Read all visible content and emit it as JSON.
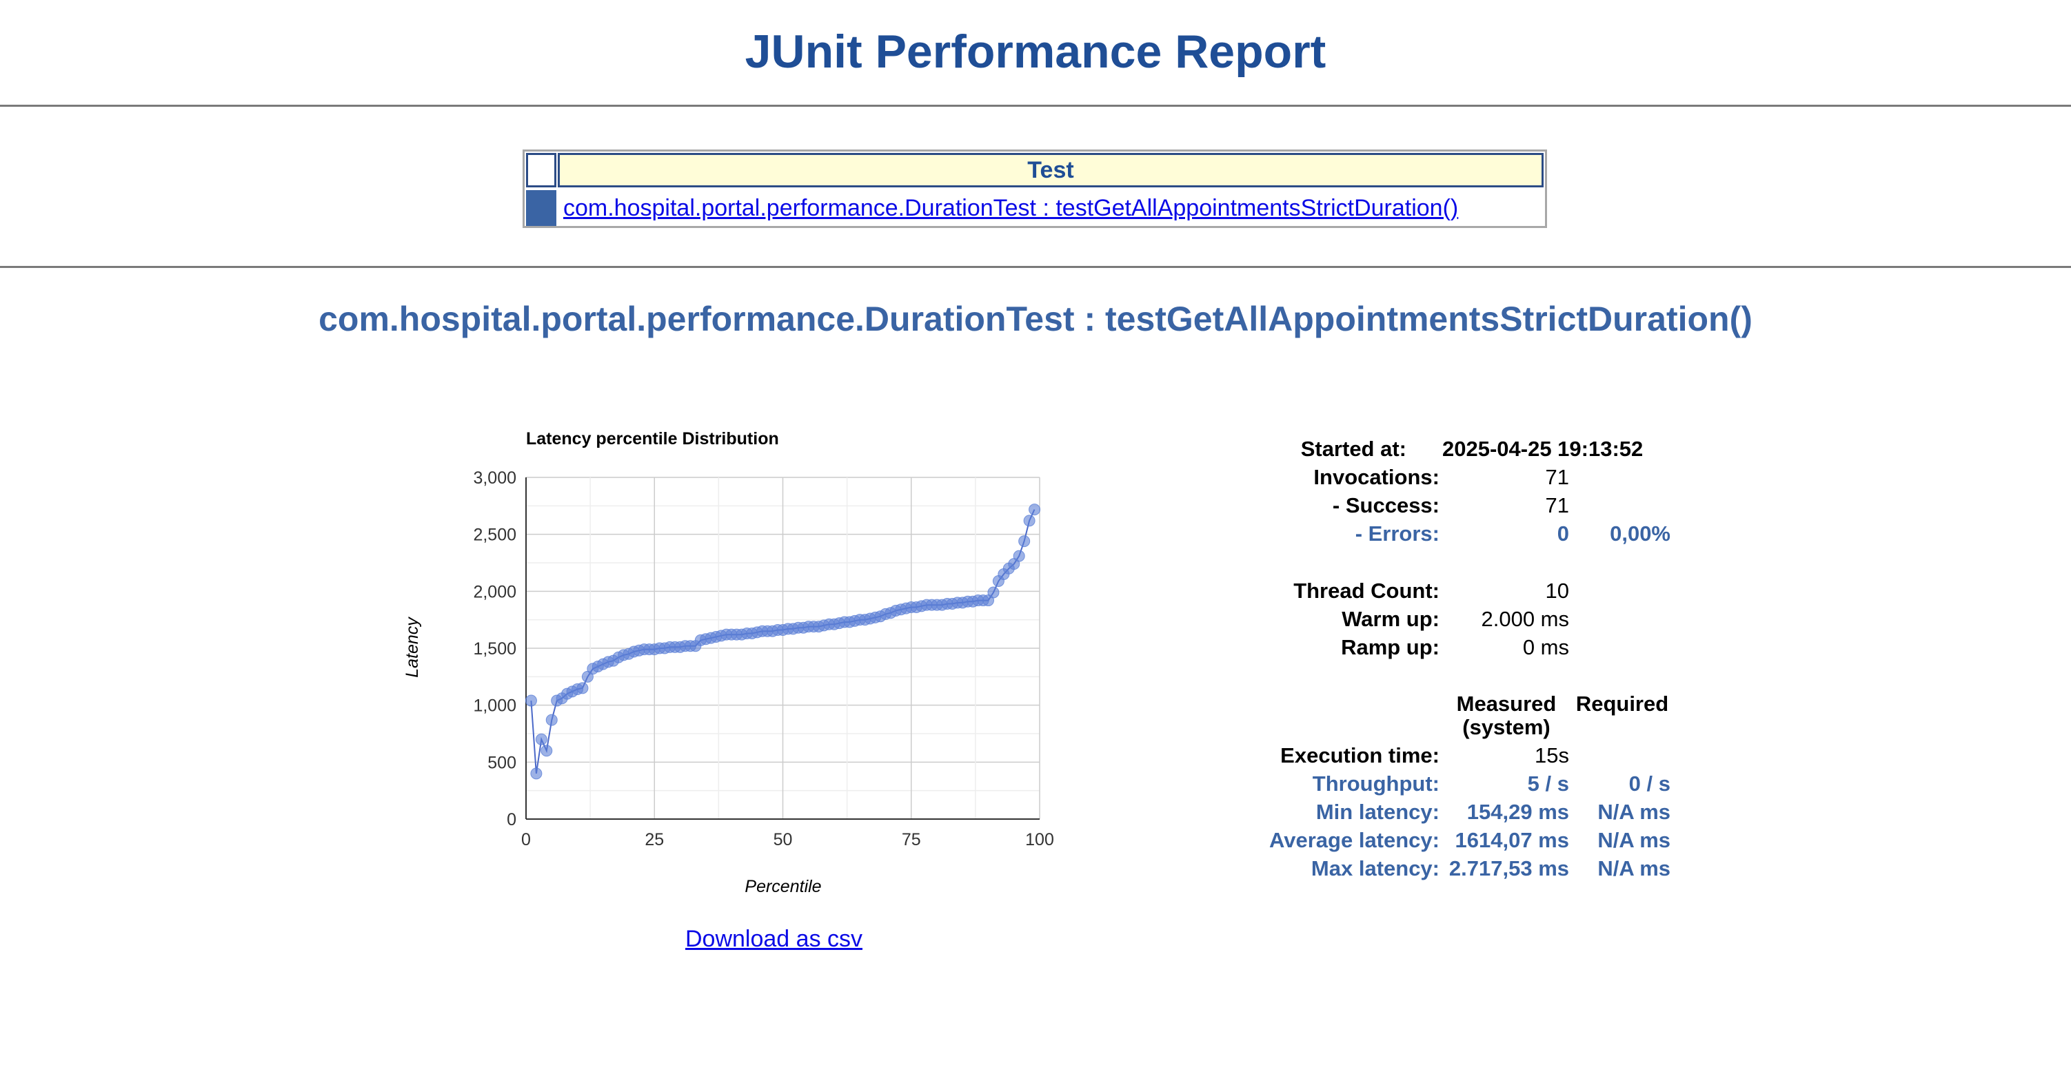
{
  "page": {
    "title": "JUnit Performance Report"
  },
  "summary_table": {
    "header": "Test",
    "rows": [
      {
        "link": "com.hospital.portal.performance.DurationTest : testGetAllAppointmentsStrictDuration()"
      }
    ]
  },
  "section": {
    "title": "com.hospital.portal.performance.DurationTest : testGetAllAppointmentsStrictDuration()",
    "download_label": "Download as csv"
  },
  "stats": {
    "started_at": {
      "label": "Started at:",
      "value": "2025-04-25 19:13:52"
    },
    "invocations": {
      "label": "Invocations:",
      "value": "71"
    },
    "success": {
      "label": "- Success:",
      "value": "71"
    },
    "errors": {
      "label": "- Errors:",
      "value": "0",
      "percent": "0,00%"
    },
    "thread_count": {
      "label": "Thread Count:",
      "value": "10"
    },
    "warm_up": {
      "label": "Warm up:",
      "value": "2.000 ms"
    },
    "ramp_up": {
      "label": "Ramp up:",
      "value": "0 ms"
    },
    "columns": {
      "measured": "Measured",
      "measured_sub": "(system)",
      "required": "Required"
    },
    "execution_time": {
      "label": "Execution time:",
      "measured": "15s"
    },
    "throughput": {
      "label": "Throughput:",
      "measured": "5 / s",
      "required": "0 / s"
    },
    "min_latency": {
      "label": "Min latency:",
      "measured": "154,29 ms",
      "required": "N/A ms"
    },
    "average_latency": {
      "label": "Average latency:",
      "measured": "1614,07 ms",
      "required": "N/A ms"
    },
    "max_latency": {
      "label": "Max latency:",
      "measured": "2.717,53 ms",
      "required": "N/A ms"
    }
  },
  "colors": {
    "title": "#1f4e96",
    "accent": "#3a64a4",
    "link": "#0a0ae6",
    "header_bg": "#fffdd8",
    "series": "#5b7fd6"
  },
  "chart_data": {
    "type": "line",
    "title": "Latency percentile Distribution",
    "xlabel": "Percentile",
    "ylabel": "Latency",
    "xlim": [
      0,
      100
    ],
    "ylim": [
      0,
      3000
    ],
    "xticks": [
      "0",
      "25",
      "50",
      "75",
      "100"
    ],
    "yticks": [
      "0",
      "500",
      "1,000",
      "1,500",
      "2,000",
      "2,500",
      "3,000"
    ],
    "grid": true,
    "series": [
      {
        "x": [
          1,
          2,
          3,
          4,
          5,
          6,
          7,
          8,
          9,
          10,
          11,
          12,
          13,
          14,
          15,
          16,
          17,
          18,
          19,
          20,
          21,
          22,
          23,
          24,
          25,
          26,
          27,
          28,
          29,
          30,
          31,
          32,
          33,
          34,
          35,
          36,
          37,
          38,
          39,
          40,
          41,
          42,
          43,
          44,
          45,
          46,
          47,
          48,
          49,
          50,
          51,
          52,
          53,
          54,
          55,
          56,
          57,
          58,
          59,
          60,
          61,
          62,
          63,
          64,
          65,
          66,
          67,
          68,
          69,
          70,
          71,
          72,
          73,
          74,
          75,
          76,
          77,
          78,
          79,
          80,
          81,
          82,
          83,
          84,
          85,
          86,
          87,
          88,
          89,
          90,
          91,
          92,
          93,
          94,
          95,
          96,
          97,
          98,
          99
        ],
        "values": [
          1040,
          400,
          700,
          600,
          870,
          1040,
          1060,
          1100,
          1120,
          1140,
          1150,
          1250,
          1320,
          1340,
          1360,
          1380,
          1390,
          1420,
          1440,
          1450,
          1470,
          1480,
          1490,
          1490,
          1490,
          1500,
          1500,
          1510,
          1510,
          1510,
          1520,
          1520,
          1520,
          1570,
          1580,
          1590,
          1600,
          1610,
          1620,
          1620,
          1620,
          1620,
          1630,
          1630,
          1640,
          1650,
          1650,
          1650,
          1660,
          1660,
          1670,
          1670,
          1680,
          1680,
          1690,
          1690,
          1690,
          1700,
          1710,
          1710,
          1720,
          1730,
          1730,
          1740,
          1750,
          1750,
          1760,
          1770,
          1780,
          1800,
          1810,
          1830,
          1840,
          1850,
          1860,
          1860,
          1870,
          1880,
          1880,
          1880,
          1880,
          1890,
          1890,
          1900,
          1900,
          1910,
          1910,
          1920,
          1920,
          1920,
          1990,
          2090,
          2150,
          2200,
          2240,
          2310,
          2440,
          2620,
          2718
        ]
      }
    ]
  }
}
